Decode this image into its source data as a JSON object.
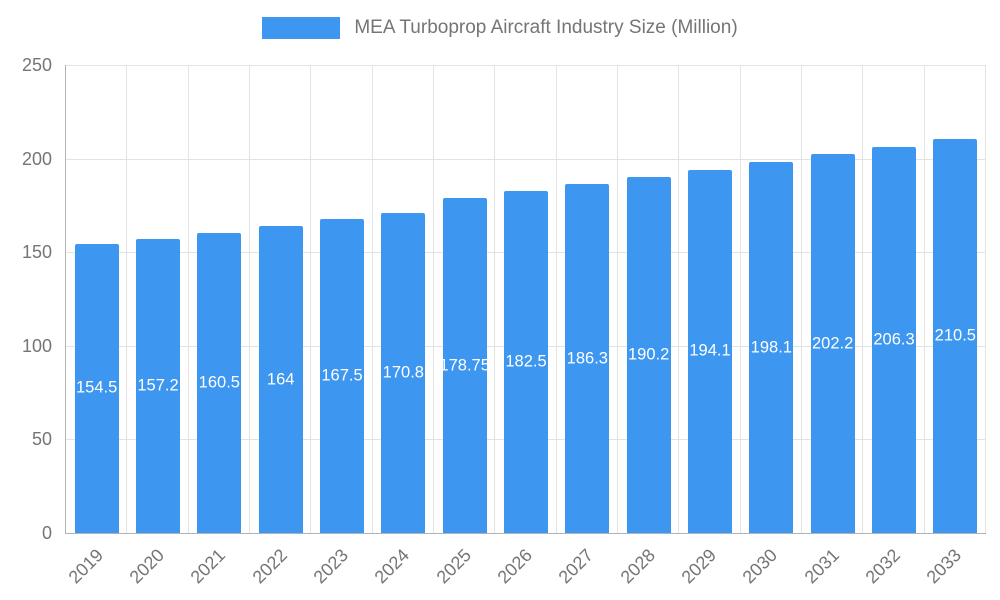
{
  "chart_data": {
    "type": "bar",
    "title": "MEA Turboprop Aircraft Industry Size (Million)",
    "xlabel": "",
    "ylabel": "",
    "categories": [
      "2019",
      "2020",
      "2021",
      "2022",
      "2023",
      "2024",
      "2025",
      "2026",
      "2027",
      "2028",
      "2029",
      "2030",
      "2031",
      "2032",
      "2033"
    ],
    "values": [
      154.5,
      157.2,
      160.5,
      164,
      167.5,
      170.8,
      178.75,
      182.5,
      186.3,
      190.2,
      194.1,
      198.1,
      202.2,
      206.3,
      210.5
    ],
    "ylim": [
      0,
      250
    ],
    "yticks": [
      0,
      50,
      100,
      150,
      200,
      250
    ],
    "grid": true,
    "legend_position": "top",
    "bar_color": "#3d96f0",
    "value_label_color": "#ffffff"
  }
}
